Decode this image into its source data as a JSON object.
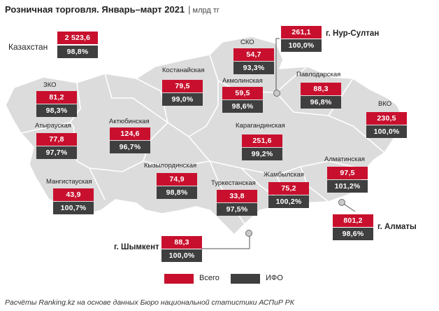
{
  "title": "Розничная торговля. Январь–март 2021",
  "unit_sep": "|",
  "unit": "млрд тг",
  "colors": {
    "total": "#c8102e",
    "ifo": "#3f3f3f",
    "map_fill": "#dcdcdc",
    "map_border": "#ffffff"
  },
  "kazakhstan": {
    "label": "Казахстан",
    "total": "2 523,6",
    "ifo": "98,8%"
  },
  "regions": [
    {
      "id": "sko",
      "label": "СКО",
      "total": "54,7",
      "ifo": "93,3%"
    },
    {
      "id": "nur-sultan",
      "label": "г. Нур-Султан",
      "total": "261,1",
      "ifo": "100,0%"
    },
    {
      "id": "kostanay",
      "label": "Костанайская",
      "total": "79,5",
      "ifo": "99,0%"
    },
    {
      "id": "akmola",
      "label": "Акмолинская",
      "total": "59,5",
      "ifo": "98,6%"
    },
    {
      "id": "pavlodar",
      "label": "Павлодарская",
      "total": "88,3",
      "ifo": "96,8%"
    },
    {
      "id": "zko",
      "label": "ЗКО",
      "total": "81,2",
      "ifo": "98,3%"
    },
    {
      "id": "vko",
      "label": "ВКО",
      "total": "230,5",
      "ifo": "100,0%"
    },
    {
      "id": "atyrau",
      "label": "Атырауская",
      "total": "77,8",
      "ifo": "97,7%"
    },
    {
      "id": "aktobe",
      "label": "Актюбинская",
      "total": "124,6",
      "ifo": "96,7%"
    },
    {
      "id": "karaganda",
      "label": "Карагандинская",
      "total": "251,6",
      "ifo": "99,2%"
    },
    {
      "id": "almaty-obl",
      "label": "Алматинская",
      "total": "97,5",
      "ifo": "101,2%"
    },
    {
      "id": "kyzylorda",
      "label": "Кызылординская",
      "total": "74,9",
      "ifo": "98,8%"
    },
    {
      "id": "mangystau",
      "label": "Мангистауская",
      "total": "43,9",
      "ifo": "100,7%"
    },
    {
      "id": "turkestan",
      "label": "Туркестанская",
      "total": "33,8",
      "ifo": "97,5%"
    },
    {
      "id": "zhambyl",
      "label": "Жамбылская",
      "total": "75,2",
      "ifo": "100,2%"
    },
    {
      "id": "almaty",
      "label": "г. Алматы",
      "total": "801,2",
      "ifo": "98,6%"
    },
    {
      "id": "shymkent",
      "label": "г. Шымкент",
      "total": "88,3",
      "ifo": "100,0%"
    }
  ],
  "legend": {
    "total": "Всего",
    "ifo": "ИФО"
  },
  "source": "Расчёты Ranking.kz на основе данных Бюро национальной статистики АСПиР РК"
}
